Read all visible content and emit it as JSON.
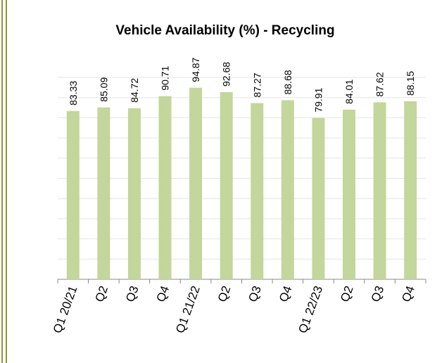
{
  "chart_data": {
    "type": "bar",
    "title": "Vehicle Availability (%) - Recycling",
    "categories": [
      "Q1 20/21",
      "Q2",
      "Q3",
      "Q4",
      "Q1 21/22",
      "Q2",
      "Q3",
      "Q4",
      "Q1 22/23",
      "Q2",
      "Q3",
      "Q4"
    ],
    "values": [
      83.33,
      85.09,
      84.72,
      90.71,
      94.87,
      92.68,
      87.27,
      88.68,
      79.91,
      84.01,
      87.62,
      88.15
    ],
    "color": "#c3d69b",
    "ylim": [
      0,
      100
    ],
    "yticks": [
      0,
      10,
      20,
      30,
      40,
      50,
      60,
      70,
      80,
      90,
      100
    ],
    "grid": true
  }
}
